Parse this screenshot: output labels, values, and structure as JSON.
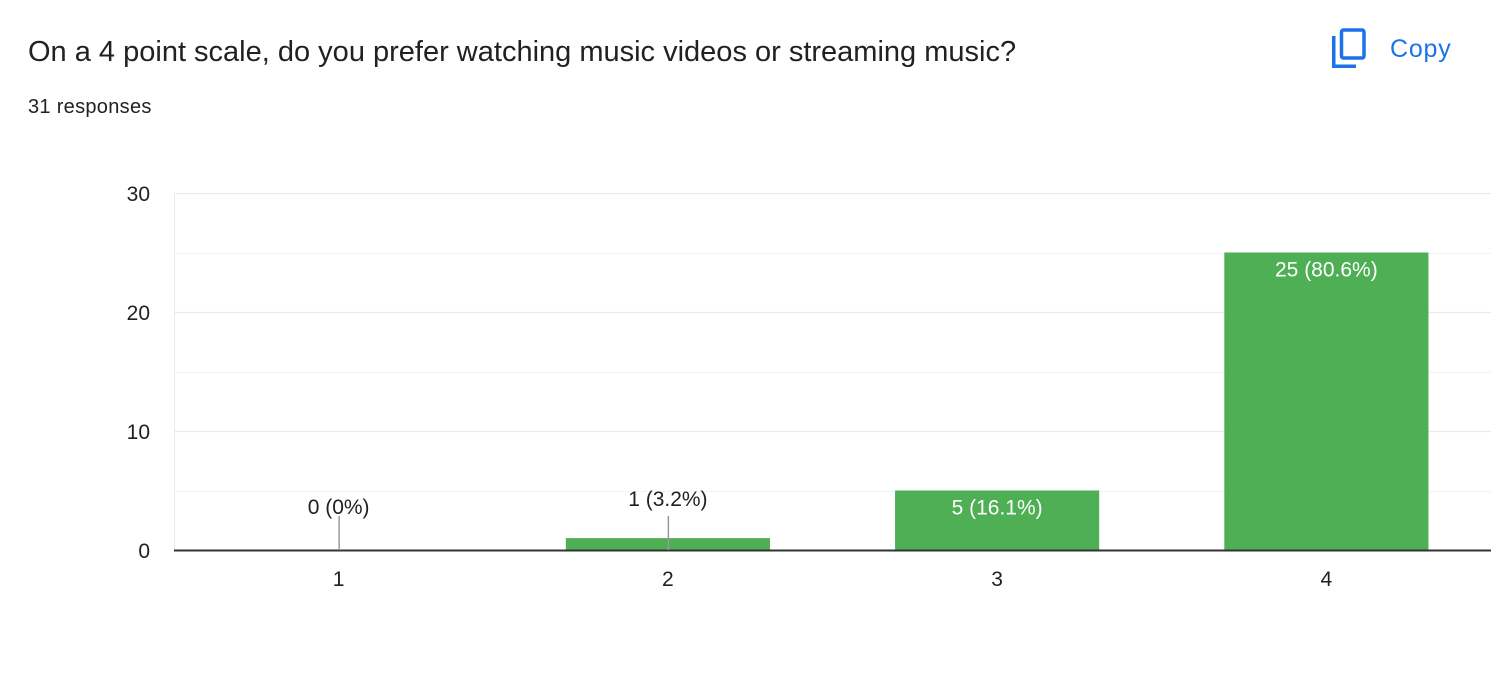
{
  "question": {
    "title": "On a 4 point scale, do you prefer watching music videos or streaming music?",
    "responses_text": "31 responses"
  },
  "copy_button": {
    "label": "Copy",
    "icon": "copy-icon"
  },
  "colors": {
    "bar": "#4eaf55",
    "accent": "#1a73e8",
    "text": "#202124",
    "grid": "#e8eaed",
    "baseline": "#333333"
  },
  "chart_data": {
    "type": "bar",
    "categories": [
      "1",
      "2",
      "3",
      "4"
    ],
    "values": [
      0,
      1,
      5,
      25
    ],
    "data_labels": [
      "0 (0%)",
      "1 (3.2%)",
      "5 (16.1%)",
      "25 (80.6%)"
    ],
    "yticks": [
      0,
      10,
      20,
      30
    ],
    "ylim": [
      0,
      30
    ],
    "minor_gridlines": true,
    "legend": "none"
  }
}
